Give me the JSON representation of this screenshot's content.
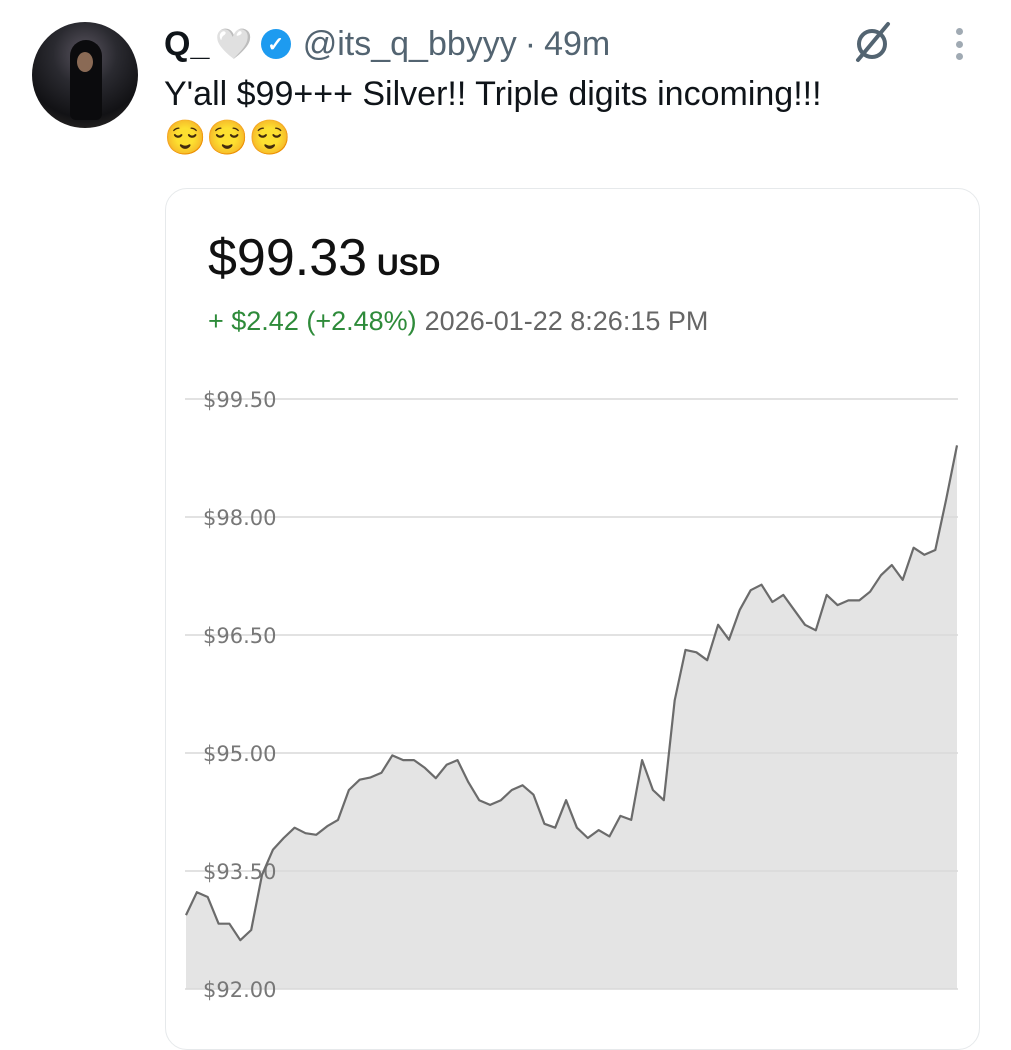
{
  "tweet": {
    "display_name": "Q_",
    "heart_emoji": "🤍",
    "verified_icon": "verified-badge-icon",
    "handle": "@its_q_bbyyy",
    "separator": "·",
    "time": "49m",
    "text": "Y'all $99+++ Silver!!  Triple digits incoming!!!",
    "emojis": "😌😌😌",
    "grok_icon": "grok-icon",
    "more_icon": "more-vertical-icon"
  },
  "card": {
    "price": "$99.33",
    "currency": "USD",
    "change": "+ $2.42 (+2.48%)",
    "timestamp": "2026-01-22 8:26:15 PM",
    "colors": {
      "up": "#2e8b3a",
      "line": "#6b6b6b",
      "fill": "#e4e4e4"
    }
  },
  "chart_data": {
    "type": "area",
    "title": "",
    "xlabel": "",
    "ylabel": "",
    "ylim": [
      92,
      99.5
    ],
    "grid": true,
    "y_ticks": [
      92.0,
      93.5,
      95.0,
      96.5,
      98.0,
      99.5
    ],
    "y_tick_labels": [
      "$92.00",
      "$93.50",
      "$95.00",
      "$96.50",
      "$98.00",
      "$99.50"
    ],
    "values": [
      92.94,
      93.23,
      93.17,
      92.83,
      92.83,
      92.62,
      92.75,
      93.45,
      93.77,
      93.92,
      94.05,
      93.98,
      93.96,
      94.07,
      94.15,
      94.53,
      94.66,
      94.69,
      94.75,
      94.97,
      94.91,
      94.91,
      94.81,
      94.68,
      94.85,
      94.91,
      94.63,
      94.4,
      94.34,
      94.4,
      94.53,
      94.59,
      94.47,
      94.1,
      94.05,
      94.4,
      94.05,
      93.92,
      94.02,
      93.94,
      94.2,
      94.15,
      94.91,
      94.53,
      94.4,
      95.67,
      96.31,
      96.28,
      96.18,
      96.63,
      96.44,
      96.82,
      97.07,
      97.14,
      96.92,
      97.01,
      96.82,
      96.63,
      96.56,
      97.01,
      96.88,
      96.94,
      96.94,
      97.05,
      97.26,
      97.39,
      97.2,
      97.61,
      97.52,
      97.58,
      98.22,
      98.91
    ]
  }
}
